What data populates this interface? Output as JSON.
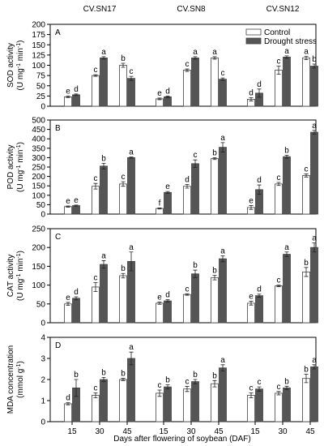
{
  "column_titles": [
    "CV.SN17",
    "CV.SN8",
    "CV.SN12"
  ],
  "categories": [
    "15",
    "30",
    "45",
    "15",
    "30",
    "45",
    "15",
    "30",
    "45"
  ],
  "xlabel": "Days after flowering of soybean (DAF)",
  "chart_data": [
    {
      "type": "bar",
      "label": "A",
      "ylabel": [
        "SOD activity",
        [
          "(U mg",
          "-1",
          " min",
          "-1",
          ")"
        ]
      ],
      "ylim": [
        0,
        200
      ],
      "yticks": [
        0,
        25,
        50,
        75,
        100,
        125,
        150,
        175,
        200
      ],
      "legend": "upper right",
      "series": [
        {
          "name": "Control",
          "color": "#ffffff",
          "values": [
            23,
            75,
            100,
            18,
            88,
            118,
            17,
            88,
            118
          ],
          "errors": [
            2,
            2,
            5,
            2,
            3,
            3,
            4,
            10,
            4
          ],
          "letters": [
            "e",
            "c",
            "b",
            "e",
            "c",
            "a",
            "d",
            "c",
            "a"
          ]
        },
        {
          "name": "Drought stress",
          "color": "#555555",
          "values": [
            28,
            118,
            68,
            23,
            118,
            66,
            32,
            120,
            98
          ],
          "errors": [
            2,
            3,
            5,
            2,
            3,
            3,
            10,
            3,
            5
          ],
          "letters": [
            "d",
            "a",
            "c",
            "d",
            "a",
            "c",
            "d",
            "a",
            "b"
          ]
        }
      ]
    },
    {
      "type": "bar",
      "label": "B",
      "ylabel": [
        "POD activity",
        [
          "(U mg",
          "-1",
          " min",
          "-1",
          ")"
        ]
      ],
      "ylim": [
        0,
        500
      ],
      "yticks": [
        0,
        50,
        100,
        150,
        200,
        250,
        300,
        350,
        400,
        450,
        500
      ],
      "series": [
        {
          "name": "Control",
          "color": "#ffffff",
          "values": [
            40,
            148,
            160,
            30,
            148,
            295,
            35,
            160,
            205
          ],
          "errors": [
            3,
            15,
            12,
            3,
            10,
            5,
            10,
            8,
            8
          ],
          "letters": [
            "e",
            "c",
            "c",
            "f",
            "d",
            "b",
            "e",
            "c",
            "c"
          ]
        },
        {
          "name": "Drought stress",
          "color": "#555555",
          "values": [
            45,
            255,
            300,
            115,
            268,
            355,
            130,
            305,
            435
          ],
          "errors": [
            3,
            15,
            3,
            5,
            20,
            25,
            25,
            8,
            10
          ],
          "letters": [
            "e",
            "b",
            "a",
            "e",
            "c",
            "a",
            "d",
            "b",
            "a"
          ]
        }
      ]
    },
    {
      "type": "bar",
      "label": "C",
      "ylabel": [
        "CAT activity",
        [
          "(U mg",
          "-1",
          " min",
          "-1",
          ")"
        ]
      ],
      "ylim": [
        0,
        250
      ],
      "yticks": [
        0,
        50,
        100,
        150,
        200,
        250
      ],
      "series": [
        {
          "name": "Control",
          "color": "#ffffff",
          "values": [
            50,
            95,
            125,
            52,
            75,
            120,
            52,
            98,
            135
          ],
          "errors": [
            4,
            12,
            6,
            3,
            2,
            6,
            5,
            2,
            12
          ],
          "letters": [
            "e",
            "c",
            "b",
            "e",
            "c",
            "b",
            "e",
            "c",
            "b"
          ]
        },
        {
          "name": "Drought stress",
          "color": "#555555",
          "values": [
            65,
            155,
            163,
            58,
            130,
            170,
            72,
            182,
            200
          ],
          "errors": [
            4,
            10,
            25,
            3,
            10,
            8,
            4,
            6,
            12
          ],
          "letters": [
            "d",
            "a",
            "a",
            "d",
            "b",
            "a",
            "d",
            "a",
            "a"
          ]
        }
      ]
    },
    {
      "type": "bar",
      "label": "D",
      "ylabel": [
        "MDA concentration",
        [
          "(mmol g",
          "-1",
          ")"
        ]
      ],
      "ylim": [
        0,
        4
      ],
      "yticks": [
        0,
        1,
        2,
        3,
        4
      ],
      "series": [
        {
          "name": "Control",
          "color": "#ffffff",
          "values": [
            0.85,
            1.25,
            2.0,
            1.35,
            1.55,
            1.8,
            1.25,
            1.35,
            2.05
          ],
          "errors": [
            0.05,
            0.12,
            0.05,
            0.15,
            0.12,
            0.15,
            0.12,
            0.08,
            0.2
          ],
          "letters": [
            "d",
            "c",
            "b",
            "c",
            "c",
            "b",
            "c",
            "c",
            "b"
          ]
        },
        {
          "name": "Drought stress",
          "color": "#555555",
          "values": [
            1.6,
            2.0,
            3.0,
            1.65,
            1.9,
            2.55,
            1.55,
            1.6,
            2.6
          ],
          "errors": [
            0.4,
            0.1,
            0.3,
            0.1,
            0.1,
            0.15,
            0.1,
            0.08,
            0.1
          ],
          "letters": [
            "b",
            "b",
            "a",
            "b",
            "b",
            "a",
            "c",
            "b",
            "a"
          ]
        }
      ]
    }
  ]
}
